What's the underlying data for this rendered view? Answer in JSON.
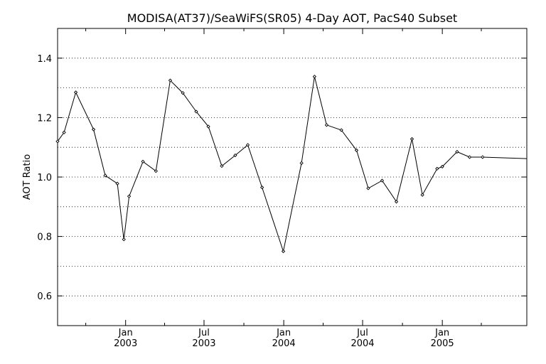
{
  "chart_data": {
    "type": "line",
    "title": "MODISA(AT37)/SeaWiFS(SR05) 4-Day AOT, PacS40 Subset",
    "xlabel": "",
    "ylabel": "AOT Ratio",
    "xlim": [
      "2002-07-28",
      "2005-07-15"
    ],
    "ylim": [
      0.5,
      1.5
    ],
    "y_ticks": [
      0.6,
      0.8,
      1.0,
      1.2,
      1.4
    ],
    "y_tick_labels": [
      "0.6",
      "0.8",
      "1.0",
      "1.2",
      "1.4"
    ],
    "y_gridlines": [
      0.6,
      0.7,
      0.8,
      0.9,
      1.0,
      1.1,
      1.2,
      1.3,
      1.4
    ],
    "grid": "horizontal dotted",
    "x_ticks": [
      {
        "date": "2003-01-01",
        "label1": "Jan",
        "label2": "2003"
      },
      {
        "date": "2003-07-01",
        "label1": "Jul",
        "label2": "2003"
      },
      {
        "date": "2004-01-01",
        "label1": "Jan",
        "label2": "2004"
      },
      {
        "date": "2004-07-01",
        "label1": "Jul",
        "label2": "2004"
      },
      {
        "date": "2005-01-01",
        "label1": "Jan",
        "label2": "2005"
      }
    ],
    "x_minor_ticks": [
      "2002-10-01",
      "2003-04-01",
      "2003-10-01",
      "2004-04-01",
      "2004-10-01",
      "2005-04-01"
    ],
    "series": [
      {
        "color": "#000000",
        "marker": "diamond",
        "points": [
          {
            "x": "2002-07-28",
            "y": 1.12
          },
          {
            "x": "2002-08-12",
            "y": 1.15
          },
          {
            "x": "2002-09-08",
            "y": 1.285
          },
          {
            "x": "2002-10-19",
            "y": 1.16
          },
          {
            "x": "2002-11-15",
            "y": 1.005
          },
          {
            "x": "2002-12-13",
            "y": 0.978
          },
          {
            "x": "2002-12-28",
            "y": 0.79
          },
          {
            "x": "2003-01-09",
            "y": 0.935
          },
          {
            "x": "2003-02-10",
            "y": 1.052
          },
          {
            "x": "2003-03-12",
            "y": 1.02
          },
          {
            "x": "2003-04-14",
            "y": 1.325
          },
          {
            "x": "2003-05-13",
            "y": 1.283
          },
          {
            "x": "2003-06-13",
            "y": 1.22
          },
          {
            "x": "2003-07-11",
            "y": 1.17
          },
          {
            "x": "2003-08-11",
            "y": 1.037
          },
          {
            "x": "2003-09-11",
            "y": 1.073
          },
          {
            "x": "2003-10-10",
            "y": 1.108
          },
          {
            "x": "2003-11-12",
            "y": 0.965
          },
          {
            "x": "2003-12-31",
            "y": 0.75
          },
          {
            "x": "2004-02-11",
            "y": 1.047
          },
          {
            "x": "2004-03-12",
            "y": 1.338
          },
          {
            "x": "2004-04-09",
            "y": 1.175
          },
          {
            "x": "2004-05-13",
            "y": 1.158
          },
          {
            "x": "2004-06-17",
            "y": 1.09
          },
          {
            "x": "2004-07-14",
            "y": 0.962
          },
          {
            "x": "2004-08-15",
            "y": 0.988
          },
          {
            "x": "2004-09-17",
            "y": 0.917
          },
          {
            "x": "2004-10-23",
            "y": 1.128
          },
          {
            "x": "2004-11-16",
            "y": 0.94
          },
          {
            "x": "2004-12-20",
            "y": 1.028
          },
          {
            "x": "2005-01-01",
            "y": 1.035
          },
          {
            "x": "2005-02-04",
            "y": 1.085
          },
          {
            "x": "2005-03-05",
            "y": 1.067
          },
          {
            "x": "2005-04-04",
            "y": 1.067
          },
          {
            "x": "2005-07-15",
            "y": 1.062
          }
        ]
      }
    ]
  }
}
